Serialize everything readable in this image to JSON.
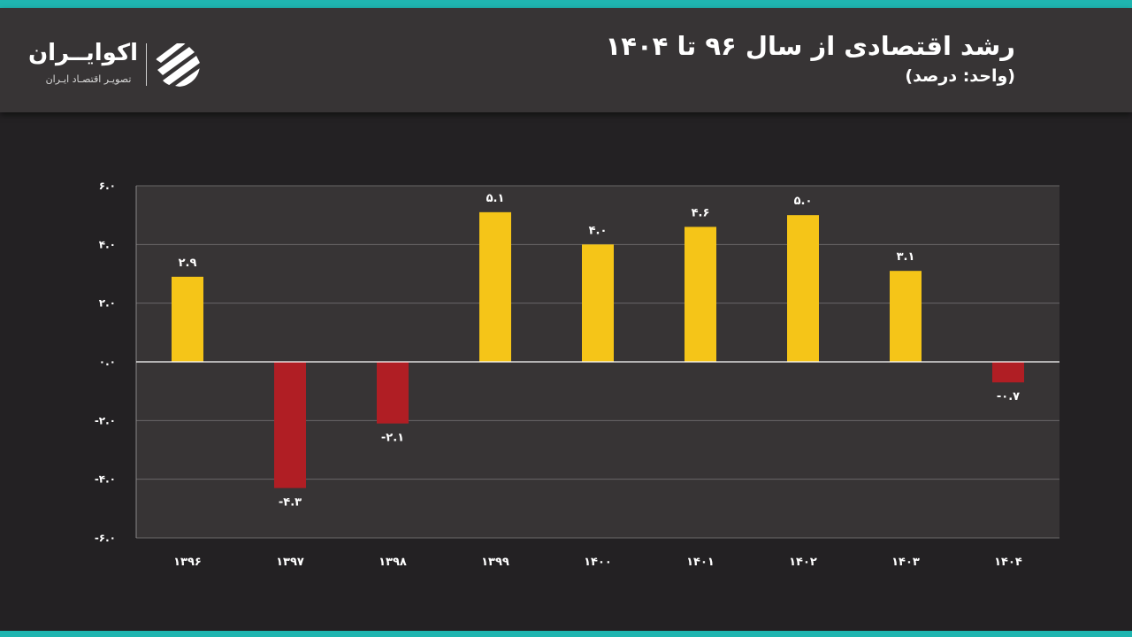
{
  "header": {
    "title": "رشد اقتصادی از سال ۹۶ تا ۱۴۰۴",
    "subtitle": "(واحد: درصد)"
  },
  "logo": {
    "name": "اکوایــران",
    "tagline": "تصویـر اقتصـاد ایـران",
    "icon": "ecoiran-stripes-icon"
  },
  "colors": {
    "accent": "#1fb5b0",
    "positive": "#f5c518",
    "negative": "#b01e24",
    "background": "#232123",
    "plot_background": "#373435",
    "text": "#ffffff"
  },
  "chart_data": {
    "type": "bar",
    "categories": [
      "۱۳۹۶",
      "۱۳۹۷",
      "۱۳۹۸",
      "۱۳۹۹",
      "۱۴۰۰",
      "۱۴۰۱",
      "۱۴۰۲",
      "۱۴۰۳",
      "۱۴۰۴"
    ],
    "values": [
      2.9,
      -4.3,
      -2.1,
      5.1,
      4.0,
      4.6,
      5.0,
      3.1,
      -0.7
    ],
    "value_labels": [
      "۲.۹",
      "-۴.۳",
      "-۲.۱",
      "۵.۱",
      "۴.۰",
      "۴.۶",
      "۵.۰",
      "۳.۱",
      "-۰.۷"
    ],
    "yticks": [
      6,
      4,
      2,
      0,
      -2,
      -4,
      -6
    ],
    "ytick_labels": [
      "۶.۰",
      "۴.۰",
      "۲.۰",
      "۰.۰",
      "-۲.۰",
      "-۴.۰",
      "-۶.۰"
    ],
    "ylim": [
      -6,
      6
    ],
    "grid": true,
    "legend": "none"
  }
}
